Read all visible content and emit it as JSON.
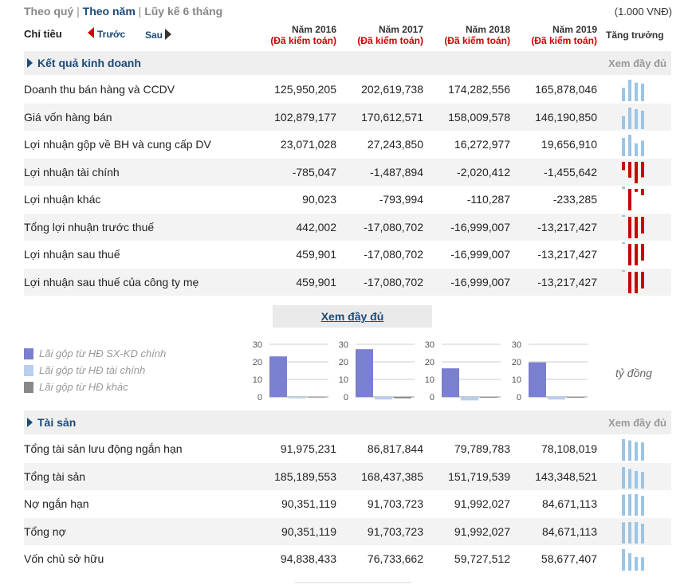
{
  "tabs": [
    "Theo quý",
    "Theo năm",
    "Lũy kế 6 tháng"
  ],
  "active_tab": "Theo năm",
  "unit": "(1.000 VNĐ)",
  "header": {
    "chitieu": "Chỉ tiêu",
    "prev": "Trước",
    "next": "Sau",
    "years": [
      {
        "year": "Năm 2016",
        "audit": "(Đã kiểm toán)"
      },
      {
        "year": "Năm 2017",
        "audit": "(Đã kiểm toán)"
      },
      {
        "year": "Năm 2018",
        "audit": "(Đã kiểm toán)"
      },
      {
        "year": "Năm 2019",
        "audit": "(Đã kiểm toán)"
      }
    ],
    "growth": "Tăng trưởng"
  },
  "colors": {
    "accent": "#1a4a7a",
    "audit": "#cc0000",
    "spark_pos": "#9cc4e4",
    "spark_neg": "#cc0000",
    "bar_main": "#7b7fcf",
    "bar_fin": "#b8cfee",
    "bar_other": "#888888"
  },
  "business": {
    "title": "Kết quả kinh doanh",
    "full": "Xem đầy đủ",
    "rows": [
      {
        "label": "Doanh thu bán hàng và CCDV",
        "values": [
          "125,950,205",
          "202,619,738",
          "174,282,556",
          "165,878,046"
        ],
        "nums": [
          125950205,
          202619738,
          174282556,
          165878046
        ]
      },
      {
        "label": "Giá vốn hàng bán",
        "values": [
          "102,879,177",
          "170,612,571",
          "158,009,578",
          "146,190,850"
        ],
        "nums": [
          102879177,
          170612571,
          158009578,
          146190850
        ]
      },
      {
        "label": "Lợi nhuận gộp về BH và cung cấp DV",
        "values": [
          "23,071,028",
          "27,243,850",
          "16,272,977",
          "19,656,910"
        ],
        "nums": [
          23071028,
          27243850,
          16272977,
          19656910
        ]
      },
      {
        "label": "Lợi nhuận tài chính",
        "values": [
          "-785,047",
          "-1,487,894",
          "-2,020,412",
          "-1,455,642"
        ],
        "nums": [
          -785047,
          -1487894,
          -2020412,
          -1455642
        ]
      },
      {
        "label": "Lợi nhuận khác",
        "values": [
          "90,023",
          "-793,994",
          "-110,287",
          "-233,285"
        ],
        "nums": [
          90023,
          -793994,
          -110287,
          -233285
        ]
      },
      {
        "label": "Tổng lợi nhuận trước thuế",
        "values": [
          "442,002",
          "-17,080,702",
          "-16,999,007",
          "-13,217,427"
        ],
        "nums": [
          442002,
          -17080702,
          -16999007,
          -13217427
        ]
      },
      {
        "label": "Lợi nhuận sau thuế",
        "values": [
          "459,901",
          "-17,080,702",
          "-16,999,007",
          "-13,217,427"
        ],
        "nums": [
          459901,
          -17080702,
          -16999007,
          -13217427
        ]
      },
      {
        "label": "Lợi nhuận sau thuế của công ty mẹ",
        "values": [
          "459,901",
          "-17,080,702",
          "-16,999,007",
          "-13,217,427"
        ],
        "nums": [
          459901,
          -17080702,
          -16999007,
          -13217427
        ]
      }
    ]
  },
  "xem_day_du": "Xem đầy đủ",
  "legend": [
    {
      "label": "Lãi gộp từ HĐ SX-KD chính",
      "color": "#7b7fcf"
    },
    {
      "label": "Lãi gộp từ HĐ tài chính",
      "color": "#b8cfee"
    },
    {
      "label": "Lãi gộp từ HĐ khác",
      "color": "#888888"
    }
  ],
  "unit_ty": "tỷ đồng",
  "chart_data": [
    {
      "type": "bar",
      "categories": [
        "Lãi gộp từ HĐ SX-KD chính",
        "Lãi gộp từ HĐ tài chính",
        "Lãi gộp từ HĐ khác"
      ],
      "values": [
        23.1,
        -0.8,
        0.1
      ],
      "ylim": [
        0,
        30
      ],
      "yticks": [
        "30",
        "20",
        "10",
        "0"
      ]
    },
    {
      "type": "bar",
      "categories": [
        "Lãi gộp từ HĐ SX-KD chính",
        "Lãi gộp từ HĐ tài chính",
        "Lãi gộp từ HĐ khác"
      ],
      "values": [
        27.2,
        -1.5,
        -0.8
      ],
      "ylim": [
        0,
        30
      ],
      "yticks": [
        "30",
        "20",
        "10",
        "0"
      ]
    },
    {
      "type": "bar",
      "categories": [
        "Lãi gộp từ HĐ SX-KD chính",
        "Lãi gộp từ HĐ tài chính",
        "Lãi gộp từ HĐ khác"
      ],
      "values": [
        16.3,
        -2.0,
        -0.1
      ],
      "ylim": [
        0,
        30
      ],
      "yticks": [
        "30",
        "20",
        "10",
        "0"
      ]
    },
    {
      "type": "bar",
      "categories": [
        "Lãi gộp từ HĐ SX-KD chính",
        "Lãi gộp từ HĐ tài chính",
        "Lãi gộp từ HĐ khác"
      ],
      "values": [
        19.7,
        -1.5,
        -0.2
      ],
      "ylim": [
        0,
        30
      ],
      "yticks": [
        "30",
        "20",
        "10",
        "0"
      ]
    }
  ],
  "assets": {
    "title": "Tài sản",
    "full": "Xem đầy đủ",
    "rows": [
      {
        "label": "Tổng tài sản lưu động ngắn hạn",
        "values": [
          "91,975,231",
          "86,817,844",
          "79,789,783",
          "78,108,019"
        ],
        "nums": [
          91975231,
          86817844,
          79789783,
          78108019
        ]
      },
      {
        "label": "Tổng tài sản",
        "values": [
          "185,189,553",
          "168,437,385",
          "151,719,539",
          "143,348,521"
        ],
        "nums": [
          185189553,
          168437385,
          151719539,
          143348521
        ]
      },
      {
        "label": "Nợ ngắn hạn",
        "values": [
          "90,351,119",
          "91,703,723",
          "91,992,027",
          "84,671,113"
        ],
        "nums": [
          90351119,
          91703723,
          91992027,
          84671113
        ]
      },
      {
        "label": "Tổng nợ",
        "values": [
          "90,351,119",
          "91,703,723",
          "91,992,027",
          "84,671,113"
        ],
        "nums": [
          90351119,
          91703723,
          91992027,
          84671113
        ]
      },
      {
        "label": "Vốn chủ sở hữu",
        "values": [
          "94,838,433",
          "76,733,662",
          "59,727,512",
          "58,677,407"
        ],
        "nums": [
          94838433,
          76733662,
          59727512,
          58677407
        ]
      }
    ]
  }
}
